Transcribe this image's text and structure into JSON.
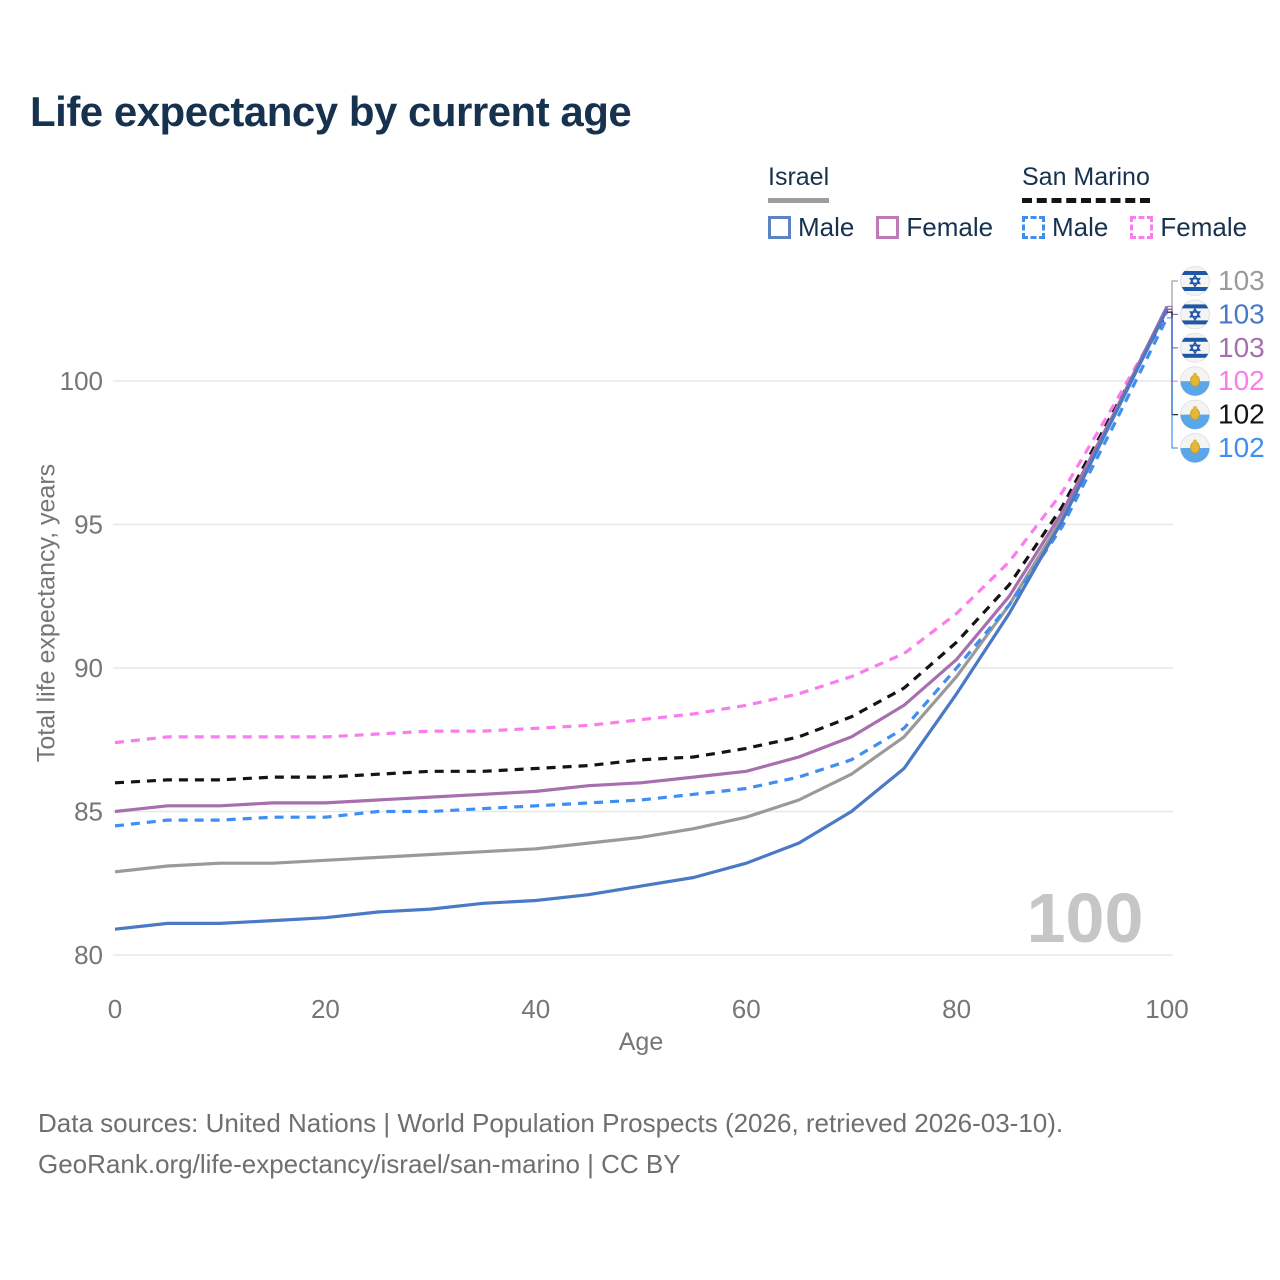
{
  "title": "Life expectancy by current age",
  "legend": {
    "groups": [
      {
        "name": "Israel",
        "line_style": "solid",
        "underline_color": "#9e9e9e",
        "items": [
          {
            "label": "Male",
            "color": "#5b84c4"
          },
          {
            "label": "Female",
            "color": "#bd7cb8"
          }
        ]
      },
      {
        "name": "San Marino",
        "line_style": "dashed",
        "underline_color": "#141414",
        "items": [
          {
            "label": "Male",
            "color": "#3f8ef2"
          },
          {
            "label": "Female",
            "color": "#fb7cec"
          }
        ]
      }
    ]
  },
  "watermark": "100",
  "footer": {
    "line1": "Data sources: United Nations | World Population Prospects (2026, retrieved 2026-03-10).",
    "line2": "GeoRank.org/life-expectancy/israel/san-marino | CC BY"
  },
  "colors": {
    "title_text": "#16324f",
    "axis_text": "#767676",
    "gridline": "#e7e7e7",
    "watermark": "#c6c6c6",
    "footer_text": "#6f6f6f"
  },
  "chart_data": {
    "type": "line",
    "title": "Life expectancy by current age",
    "xlabel": "Age",
    "ylabel": "Total life expectancy, years",
    "xlim": [
      0,
      100
    ],
    "ylim": [
      79,
      103.5
    ],
    "x_ticks": [
      0,
      20,
      40,
      60,
      80,
      100
    ],
    "y_ticks": [
      80,
      85,
      90,
      95,
      100
    ],
    "grid": "horizontal-only",
    "legend_position": "top-right",
    "x": [
      0,
      5,
      10,
      15,
      20,
      25,
      30,
      35,
      40,
      45,
      50,
      55,
      60,
      65,
      70,
      75,
      80,
      85,
      90,
      95,
      100
    ],
    "series": [
      {
        "name": "Israel Total",
        "country": "Israel",
        "sex": "total",
        "flag": "israel",
        "color": "#9a9a9a",
        "dash": false,
        "end_label": "103",
        "values": [
          82.9,
          83.1,
          83.2,
          83.2,
          83.3,
          83.4,
          83.5,
          83.6,
          83.7,
          83.9,
          84.1,
          84.4,
          84.8,
          85.4,
          86.3,
          87.6,
          89.7,
          92.2,
          95.2,
          98.8,
          102.5
        ]
      },
      {
        "name": "Israel Male",
        "country": "Israel",
        "sex": "male",
        "flag": "israel",
        "color": "#4a79c5",
        "dash": false,
        "end_label": "103",
        "values": [
          80.9,
          81.1,
          81.1,
          81.2,
          81.3,
          81.5,
          81.6,
          81.8,
          81.9,
          82.1,
          82.4,
          82.7,
          83.2,
          83.9,
          85.0,
          86.5,
          89.1,
          91.9,
          95.1,
          98.8,
          102.5
        ]
      },
      {
        "name": "Israel Female",
        "country": "Israel",
        "sex": "female",
        "flag": "israel",
        "color": "#a86fae",
        "dash": false,
        "end_label": "103",
        "values": [
          85.0,
          85.2,
          85.2,
          85.3,
          85.3,
          85.4,
          85.5,
          85.6,
          85.7,
          85.9,
          86.0,
          86.2,
          86.4,
          86.9,
          87.6,
          88.7,
          90.3,
          92.5,
          95.4,
          98.9,
          102.6
        ]
      },
      {
        "name": "San Marino Female",
        "country": "San Marino",
        "sex": "female",
        "flag": "san-marino",
        "color": "#fb7cec",
        "dash": true,
        "end_label": "102",
        "values": [
          87.4,
          87.6,
          87.6,
          87.6,
          87.6,
          87.7,
          87.8,
          87.8,
          87.9,
          88.0,
          88.2,
          88.4,
          88.7,
          89.1,
          89.7,
          90.5,
          91.9,
          93.7,
          96.1,
          99.2,
          102.4
        ]
      },
      {
        "name": "San Marino Total",
        "country": "San Marino",
        "sex": "total",
        "flag": "san-marino",
        "color": "#141414",
        "dash": true,
        "end_label": "102",
        "values": [
          86.0,
          86.1,
          86.1,
          86.2,
          86.2,
          86.3,
          86.4,
          86.4,
          86.5,
          86.6,
          86.8,
          86.9,
          87.2,
          87.6,
          88.3,
          89.3,
          90.9,
          92.9,
          95.6,
          99.0,
          102.4
        ]
      },
      {
        "name": "San Marino Male",
        "country": "San Marino",
        "sex": "male",
        "flag": "san-marino",
        "color": "#3f8ef2",
        "dash": true,
        "end_label": "102",
        "values": [
          84.5,
          84.7,
          84.7,
          84.8,
          84.8,
          85.0,
          85.0,
          85.1,
          85.2,
          85.3,
          85.4,
          85.6,
          85.8,
          86.2,
          86.8,
          87.9,
          90.0,
          92.2,
          94.9,
          98.5,
          102.2
        ]
      }
    ],
    "end_label_order": [
      "Israel Total",
      "Israel Male",
      "Israel Female",
      "San Marino Female",
      "San Marino Total",
      "San Marino Male"
    ],
    "draw_order": [
      "Israel Total",
      "San Marino Total",
      "San Marino Female",
      "San Marino Male",
      "Israel Female",
      "Israel Male"
    ]
  }
}
